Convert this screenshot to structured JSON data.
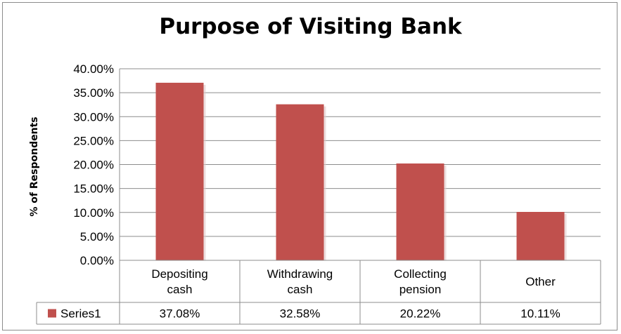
{
  "chart_data": {
    "type": "bar",
    "title": "Purpose of Visiting Bank",
    "ylabel": "% of Respondents",
    "xlabel": "",
    "categories": [
      [
        "Depositing",
        "cash"
      ],
      [
        "Withdrawing",
        "cash"
      ],
      [
        "Collecting",
        "pension"
      ],
      [
        "Other"
      ]
    ],
    "series": [
      {
        "name": "Series1",
        "values": [
          37.08,
          32.58,
          20.22,
          10.11
        ],
        "labels": [
          "37.08%",
          "32.58%",
          "20.22%",
          "10.11%"
        ],
        "color": "#c0504d"
      }
    ],
    "ylim": [
      0,
      40
    ],
    "yticks": [
      "0.00%",
      "5.00%",
      "10.00%",
      "15.00%",
      "20.00%",
      "25.00%",
      "30.00%",
      "35.00%",
      "40.00%"
    ],
    "grid": true,
    "legend": "data-table"
  }
}
